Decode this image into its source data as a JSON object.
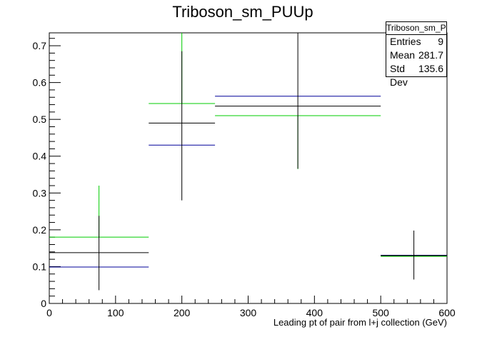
{
  "chart_data": {
    "type": "histogram",
    "title": "Triboson_sm_PUUp",
    "xlabel": "Leading pt of pair from l+j collection (GeV)",
    "ylabel": "",
    "xlim": [
      0,
      600
    ],
    "ylim": [
      0,
      0.735
    ],
    "x_ticks": [
      0,
      100,
      200,
      300,
      400,
      500,
      600
    ],
    "y_ticks": [
      0,
      0.1,
      0.2,
      0.3,
      0.4,
      0.5,
      0.6,
      0.7
    ],
    "x_tick_labels": [
      "0",
      "100",
      "200",
      "300",
      "400",
      "500",
      "600"
    ],
    "y_tick_labels": [
      "0",
      "0.1",
      "0.2",
      "0.3",
      "0.4",
      "0.5",
      "0.6",
      "0.7"
    ],
    "bin_edges": [
      0,
      150,
      250,
      500,
      600
    ],
    "series": [
      {
        "color": "#000000",
        "values": [
          0.138,
          0.49,
          0.536,
          0.13
        ],
        "errors_low": [
          0.102,
          0.21,
          0.17,
          0.065
        ],
        "errors_high": [
          0.1,
          0.195,
          0.21,
          0.068
        ]
      },
      {
        "color": "#00cc00",
        "values": [
          0.18,
          0.543,
          0.51,
          0.128
        ],
        "errors_low": [
          0.0,
          0.0,
          0.145,
          0.0
        ],
        "errors_high": [
          0.14,
          0.192,
          0.0,
          0.0
        ]
      },
      {
        "color": "#000099",
        "values": [
          0.099,
          0.43,
          0.563,
          0.131
        ],
        "errors_low": [
          0.0,
          0.0,
          0.0,
          0.0
        ],
        "errors_high": [
          0.0,
          0.0,
          0.0,
          0.0
        ]
      }
    ],
    "stats": {
      "title": "Triboson_sm_PUUp",
      "entries_label": "Entries",
      "entries": "9",
      "mean_label": "Mean",
      "mean": "281.7",
      "stddev_label": "Std Dev",
      "stddev": "135.6"
    },
    "legend_position": "top-right",
    "grid": false
  }
}
